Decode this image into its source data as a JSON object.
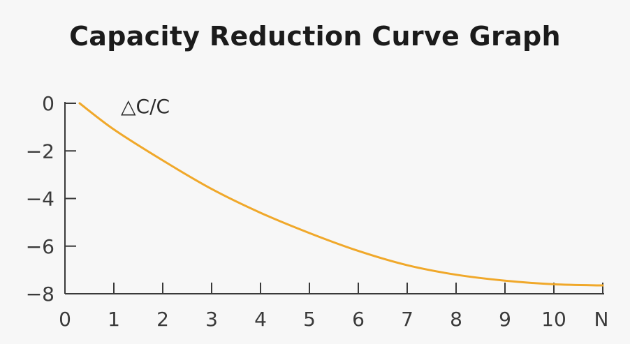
{
  "chart_data": {
    "type": "line",
    "title": "Capacity Reduction Curve Graph",
    "ylabel": "△C/C",
    "xlabel": "N",
    "x_tick_labels": [
      "0",
      "1",
      "2",
      "3",
      "4",
      "5",
      "6",
      "7",
      "8",
      "9",
      "10"
    ],
    "y_tick_labels": [
      "0",
      "−2",
      "−4",
      "−6",
      "−8"
    ],
    "y_ticks": [
      0,
      -2,
      -4,
      -6,
      -8
    ],
    "xlim": [
      0,
      11
    ],
    "ylim": [
      -8,
      0
    ],
    "grid": false,
    "colors": {
      "line": "#f0a82a",
      "axis": "#3a3a3a",
      "text": "#3a3a3a"
    },
    "series": [
      {
        "x": [
          0.3,
          1,
          2,
          3,
          4,
          5,
          6,
          7,
          8,
          9,
          10,
          11
        ],
        "values": [
          0,
          -1.1,
          -2.4,
          -3.6,
          -4.6,
          -5.45,
          -6.2,
          -6.8,
          -7.2,
          -7.45,
          -7.6,
          -7.65
        ]
      }
    ]
  }
}
